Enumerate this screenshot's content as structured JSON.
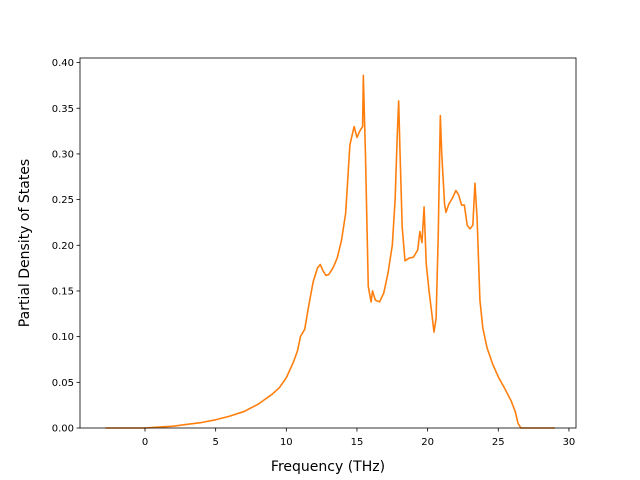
{
  "chart_data": {
    "type": "line",
    "title": "",
    "xlabel": "Frequency (THz)",
    "ylabel": "Partial Density of States",
    "xlim": [
      -4.6,
      30.5
    ],
    "ylim": [
      0.0,
      0.405
    ],
    "xticks": [
      0,
      5,
      10,
      15,
      20,
      25,
      30
    ],
    "yticks": [
      0.0,
      0.05,
      0.1,
      0.15,
      0.2,
      0.25,
      0.3,
      0.35,
      0.4
    ],
    "ytick_labels": [
      "0.00",
      "0.05",
      "0.10",
      "0.15",
      "0.20",
      "0.25",
      "0.30",
      "0.35",
      "0.40"
    ],
    "grid": false,
    "legend": "none",
    "series": [
      {
        "color": "#ff7f0e",
        "points": [
          [
            -2.8,
            0.0
          ],
          [
            0.0,
            0.0
          ],
          [
            1.0,
            0.001
          ],
          [
            2.0,
            0.002
          ],
          [
            3.0,
            0.004
          ],
          [
            4.0,
            0.006
          ],
          [
            5.0,
            0.009
          ],
          [
            6.0,
            0.013
          ],
          [
            7.0,
            0.018
          ],
          [
            8.0,
            0.026
          ],
          [
            9.0,
            0.037
          ],
          [
            9.5,
            0.044
          ],
          [
            10.0,
            0.055
          ],
          [
            10.5,
            0.072
          ],
          [
            10.8,
            0.085
          ],
          [
            11.0,
            0.1
          ],
          [
            11.3,
            0.108
          ],
          [
            11.6,
            0.135
          ],
          [
            11.9,
            0.16
          ],
          [
            12.2,
            0.175
          ],
          [
            12.4,
            0.179
          ],
          [
            12.6,
            0.172
          ],
          [
            12.8,
            0.167
          ],
          [
            13.0,
            0.168
          ],
          [
            13.3,
            0.175
          ],
          [
            13.6,
            0.186
          ],
          [
            13.9,
            0.205
          ],
          [
            14.2,
            0.235
          ],
          [
            14.5,
            0.31
          ],
          [
            14.8,
            0.33
          ],
          [
            15.0,
            0.318
          ],
          [
            15.2,
            0.325
          ],
          [
            15.4,
            0.33
          ],
          [
            15.45,
            0.386
          ],
          [
            15.6,
            0.3
          ],
          [
            15.8,
            0.155
          ],
          [
            16.0,
            0.138
          ],
          [
            16.1,
            0.15
          ],
          [
            16.3,
            0.14
          ],
          [
            16.6,
            0.138
          ],
          [
            16.9,
            0.148
          ],
          [
            17.2,
            0.17
          ],
          [
            17.5,
            0.2
          ],
          [
            17.7,
            0.25
          ],
          [
            17.85,
            0.32
          ],
          [
            17.95,
            0.358
          ],
          [
            18.05,
            0.3
          ],
          [
            18.2,
            0.22
          ],
          [
            18.4,
            0.183
          ],
          [
            18.7,
            0.186
          ],
          [
            19.0,
            0.187
          ],
          [
            19.3,
            0.195
          ],
          [
            19.45,
            0.215
          ],
          [
            19.6,
            0.203
          ],
          [
            19.75,
            0.242
          ],
          [
            19.9,
            0.18
          ],
          [
            20.1,
            0.15
          ],
          [
            20.3,
            0.125
          ],
          [
            20.45,
            0.105
          ],
          [
            20.6,
            0.12
          ],
          [
            20.75,
            0.21
          ],
          [
            20.85,
            0.3
          ],
          [
            20.9,
            0.342
          ],
          [
            21.0,
            0.3
          ],
          [
            21.2,
            0.245
          ],
          [
            21.3,
            0.236
          ],
          [
            21.5,
            0.245
          ],
          [
            21.8,
            0.253
          ],
          [
            22.0,
            0.26
          ],
          [
            22.2,
            0.255
          ],
          [
            22.4,
            0.244
          ],
          [
            22.6,
            0.244
          ],
          [
            22.8,
            0.222
          ],
          [
            23.0,
            0.218
          ],
          [
            23.2,
            0.222
          ],
          [
            23.35,
            0.268
          ],
          [
            23.5,
            0.23
          ],
          [
            23.7,
            0.14
          ],
          [
            23.9,
            0.11
          ],
          [
            24.2,
            0.088
          ],
          [
            24.6,
            0.07
          ],
          [
            25.0,
            0.056
          ],
          [
            25.5,
            0.042
          ],
          [
            25.9,
            0.03
          ],
          [
            26.2,
            0.018
          ],
          [
            26.4,
            0.005
          ],
          [
            26.6,
            0.0
          ],
          [
            29.0,
            0.0
          ]
        ]
      }
    ]
  }
}
